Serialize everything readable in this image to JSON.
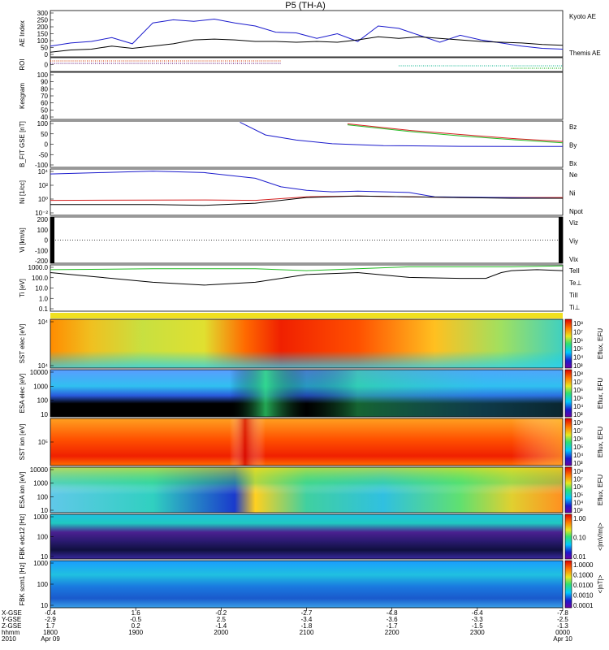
{
  "title": "P5 (TH-A)",
  "colors": {
    "kyoto": "#1a1acc",
    "themis": "#000000",
    "bz": "#d42020",
    "by": "#22bb22",
    "bx": "#1a1acc",
    "ne": "#d42020",
    "ni": "#1a1acc",
    "npot": "#000000",
    "teii": "#000000",
    "tep": "#d42020",
    "tiii": "#22bb22",
    "tip": "#1a1acc"
  },
  "chart_data": [
    {
      "type": "line",
      "id": "ae",
      "ylabel": "AE Index",
      "yticks": [
        "300",
        "250",
        "200",
        "150",
        "100",
        "50",
        "0"
      ],
      "ylim": [
        0,
        300
      ],
      "series": [
        {
          "name": "Kyoto AE",
          "color": "#1a1acc",
          "x": [
            0,
            4,
            8,
            12,
            16,
            20,
            24,
            28,
            32,
            36,
            40,
            44,
            48,
            52,
            56,
            60,
            64,
            68,
            72,
            76,
            80,
            84,
            88,
            92,
            96,
            100
          ],
          "y": [
            70,
            90,
            100,
            125,
            85,
            220,
            240,
            230,
            245,
            220,
            200,
            160,
            155,
            120,
            150,
            100,
            200,
            185,
            140,
            95,
            140,
            110,
            90,
            70,
            55,
            50
          ]
        },
        {
          "name": "Themis AE",
          "color": "#000000",
          "x": [
            0,
            4,
            8,
            12,
            16,
            20,
            24,
            28,
            32,
            36,
            40,
            44,
            48,
            52,
            56,
            60,
            64,
            68,
            72,
            76,
            80,
            84,
            88,
            92,
            96,
            100
          ],
          "y": [
            30,
            45,
            50,
            70,
            55,
            70,
            85,
            110,
            115,
            110,
            100,
            100,
            95,
            100,
            95,
            110,
            130,
            120,
            130,
            120,
            110,
            100,
            95,
            90,
            80,
            75
          ]
        }
      ]
    },
    {
      "type": "flags",
      "id": "roi",
      "ylabel": "ROI",
      "yticks": [
        "0"
      ]
    },
    {
      "type": "line",
      "id": "kesgram",
      "ylabel": "Kesgram",
      "yticks": [
        "100",
        "90",
        "80",
        "70",
        "60",
        "50",
        "40"
      ],
      "series": []
    },
    {
      "type": "line",
      "id": "bfield",
      "ylabel": "B_FIT GSE [nT]",
      "yticks": [
        "100",
        "50",
        "0",
        "-50",
        "-100"
      ],
      "ylim": [
        -100,
        100
      ],
      "series": [
        {
          "name": "Bz",
          "color": "#d42020",
          "x": [
            58,
            70,
            80,
            90,
            100
          ],
          "y": [
            88,
            60,
            42,
            25,
            12
          ]
        },
        {
          "name": "By",
          "color": "#22bb22",
          "x": [
            58,
            70,
            80,
            90,
            100
          ],
          "y": [
            84,
            55,
            36,
            20,
            6
          ]
        },
        {
          "name": "Bx",
          "color": "#1a1acc",
          "x": [
            37,
            42,
            48,
            55,
            65,
            80,
            100
          ],
          "y": [
            95,
            40,
            18,
            2,
            -6,
            -9,
            -10
          ]
        }
      ]
    },
    {
      "type": "line",
      "id": "density",
      "ylabel": "Ni [1/cc]",
      "yticks": [
        "10⁴",
        "10²",
        "10⁰",
        "10⁻²"
      ],
      "series": [
        {
          "name": "Ne",
          "color": "#d42020",
          "x": [
            0,
            30,
            40,
            50,
            60,
            70,
            80,
            90,
            100
          ],
          "y": [
            0.1,
            0.15,
            0.1,
            0.6,
            0.7,
            0.6,
            0.5,
            0.5,
            0.5
          ]
        },
        {
          "name": "Ni",
          "color": "#1a1acc",
          "x": [
            0,
            10,
            20,
            30,
            40,
            45,
            50,
            55,
            60,
            70,
            75,
            100
          ],
          "y": [
            3.8,
            4.0,
            4.2,
            4.0,
            3.2,
            2.0,
            1.5,
            1.3,
            1.4,
            1.2,
            0.6,
            0.4
          ]
        },
        {
          "name": "Npot",
          "color": "#000000",
          "x": [
            0,
            20,
            30,
            40,
            50,
            60,
            70,
            80,
            90,
            100
          ],
          "y": [
            -0.5,
            -0.5,
            -0.6,
            -0.3,
            0.5,
            0.7,
            0.6,
            0.5,
            0.4,
            0.4
          ]
        }
      ]
    },
    {
      "type": "line",
      "id": "velocity",
      "ylabel": "Vi [km/s]",
      "yticks": [
        "200",
        "100",
        "0",
        "-100",
        "-200"
      ],
      "series": [
        {
          "name": "Viz",
          "color": "#d42020",
          "x": [],
          "y": []
        },
        {
          "name": "Viy",
          "color": "#22bb22",
          "x": [],
          "y": []
        },
        {
          "name": "Vix",
          "color": "#1a1acc",
          "x": [],
          "y": []
        }
      ]
    },
    {
      "type": "line",
      "id": "temperature",
      "ylabel": "Ti [eV]",
      "yticks": [
        "1000.0",
        "100.0",
        "10.0",
        "1.0",
        "0.1"
      ],
      "series": [
        {
          "name": "TeII",
          "color": "#000000",
          "x": [
            0,
            10,
            20,
            30,
            40,
            50,
            60,
            70,
            80,
            85,
            88,
            90,
            95,
            100
          ],
          "y": [
            3.0,
            2.5,
            2.0,
            1.7,
            2.0,
            2.8,
            3.0,
            2.5,
            2.4,
            2.4,
            3.0,
            3.2,
            3.3,
            3.2
          ]
        },
        {
          "name": "Te⊥",
          "color": "#d42020",
          "x": [],
          "y": []
        },
        {
          "name": "TiII",
          "color": "#22bb22",
          "x": [
            0,
            20,
            40,
            50,
            60,
            70,
            80,
            90,
            100
          ],
          "y": [
            3.3,
            3.4,
            3.4,
            3.2,
            3.4,
            3.6,
            3.6,
            3.6,
            3.7
          ]
        },
        {
          "name": "Ti⊥",
          "color": "#1a1acc",
          "x": [],
          "y": []
        }
      ]
    },
    {
      "type": "heatmap",
      "id": "sst1",
      "ylabel": "SST elec [eV]",
      "yticks": [
        "10⁴",
        "10⁴"
      ],
      "colorbar_ticks": [
        "10⁸",
        "10⁷",
        "10⁶",
        "10⁵",
        "10⁴",
        "10³"
      ],
      "colorbar_label": "Eflux, EFU"
    },
    {
      "type": "heatmap",
      "id": "esa1",
      "ylabel": "ESA elec [eV]",
      "yticks": [
        "10000",
        "1000",
        "100",
        "10"
      ],
      "colorbar_ticks": [
        "10⁸",
        "10⁷",
        "10⁶",
        "10⁵",
        "10⁴",
        "10³"
      ],
      "colorbar_label": "Eflux, EFU"
    },
    {
      "type": "heatmap",
      "id": "sst2",
      "ylabel": "SST ion [eV]",
      "yticks": [
        "10⁵"
      ],
      "colorbar_ticks": [
        "10⁸",
        "10⁷",
        "10⁶",
        "10⁵",
        "10⁴",
        "10³"
      ],
      "colorbar_label": "Eflux, EFU"
    },
    {
      "type": "heatmap",
      "id": "esa2",
      "ylabel": "ESA ion [eV]",
      "yticks": [
        "10000",
        "1000",
        "100",
        "10"
      ],
      "colorbar_ticks": [
        "10⁸",
        "10⁷",
        "10⁶",
        "10⁵",
        "10⁴",
        "10³"
      ],
      "colorbar_label": "Eflux, EFU"
    },
    {
      "type": "heatmap",
      "id": "fbk1",
      "ylabel": "FBK edc12 [Hz]",
      "yticks": [
        "1000",
        "100",
        "10"
      ],
      "colorbar_ticks": [
        "1.00",
        "0.10",
        "0.01"
      ],
      "colorbar_label": "<|mV/m|>"
    },
    {
      "type": "heatmap",
      "id": "fbk2",
      "ylabel": "FBK scm1 [Hz]",
      "yticks": [
        "1000",
        "100",
        "10"
      ],
      "colorbar_ticks": [
        "1.0000",
        "0.1000",
        "0.0100",
        "0.0010",
        "0.0001"
      ],
      "colorbar_label": "<|nT|>"
    }
  ],
  "xaxis": {
    "row_labels": [
      "X-GSE",
      "Y-GSE",
      "Z-GSE",
      "hhmm",
      "2010"
    ],
    "ticks": [
      {
        "pos": 0,
        "vals": [
          "-0.4",
          "-2.9",
          "1.7",
          "1800",
          "Apr 09"
        ]
      },
      {
        "pos": 20,
        "vals": [
          "1.6",
          "-0.5",
          "0.2",
          "1900",
          ""
        ]
      },
      {
        "pos": 40,
        "vals": [
          "-0.2",
          "2.5",
          "-1.4",
          "2000",
          ""
        ]
      },
      {
        "pos": 60,
        "vals": [
          "-2.7",
          "-3.4",
          "-1.8",
          "2100",
          ""
        ]
      },
      {
        "pos": 80,
        "vals": [
          "-4.8",
          "-3.6",
          "-1.7",
          "2200",
          ""
        ]
      },
      {
        "pos": 100,
        "vals": [
          "-6.4",
          "-3.3",
          "-1.5",
          "2300",
          ""
        ]
      },
      {
        "pos": 120,
        "vals": [
          "-7.8",
          "-2.5",
          "-1.3",
          "0000",
          "Apr 10"
        ]
      }
    ]
  }
}
